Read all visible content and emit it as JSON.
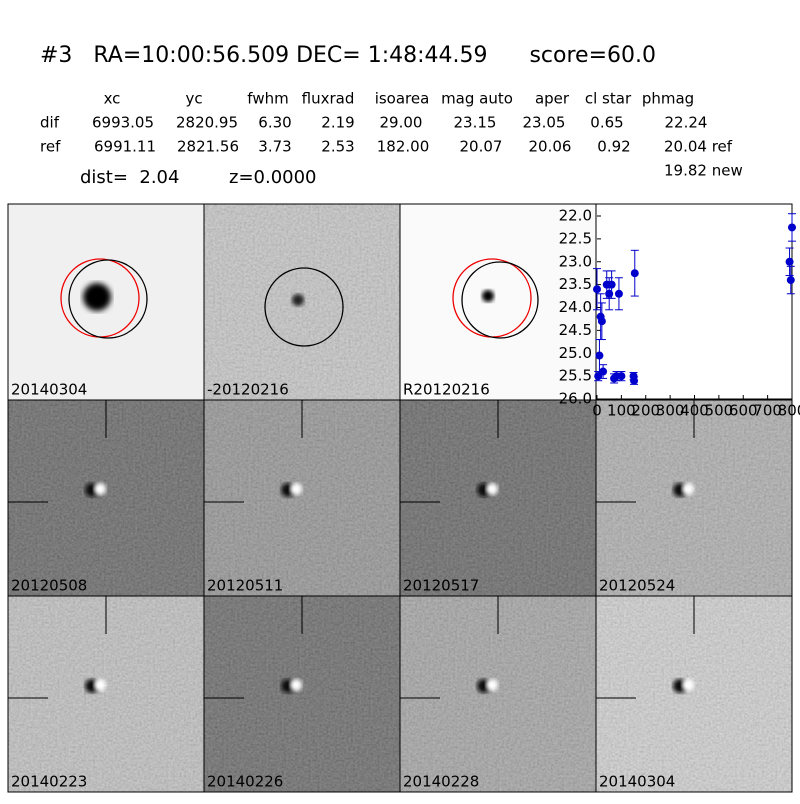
{
  "header": {
    "title": "#3   RA=10:00:56.509 DEC= 1:48:44.59      score=60.0"
  },
  "table": {
    "columns": [
      "xc",
      "yc",
      "fwhm",
      "fluxrad",
      "isoarea",
      "mag auto",
      "aper",
      "cl star",
      "phmag"
    ],
    "rows": [
      [
        "dif",
        "6993.05",
        "2820.95",
        "6.30",
        "2.19",
        "29.00",
        "23.15",
        "23.05",
        "0.65",
        "22.24"
      ],
      [
        "ref",
        "6991.11",
        "2821.56",
        "3.73",
        "2.53",
        "182.00",
        "20.07",
        "20.06",
        "0.92",
        "20.04 ref"
      ]
    ],
    "extra": "19.82 new"
  },
  "dist": "dist=  2.04",
  "z": "z=0.0000",
  "panels": [
    {
      "label": "20140304"
    },
    {
      "label": "-20120216"
    },
    {
      "label": "R20120216"
    },
    {
      "label": "20120508"
    },
    {
      "label": "20120511"
    },
    {
      "label": "20120517"
    },
    {
      "label": "20120524"
    },
    {
      "label": "20140223"
    },
    {
      "label": "20140226"
    },
    {
      "label": "20140228"
    },
    {
      "label": "20140304",
      "color": "#ff0000"
    }
  ],
  "chart_data": {
    "type": "scatter",
    "color": "#0000cc",
    "x": [
      0,
      5,
      10,
      15,
      20,
      25,
      40,
      50,
      60,
      70,
      80,
      90,
      100,
      150,
      152,
      155,
      790,
      795,
      800
    ],
    "values": [
      23.6,
      25.5,
      25.05,
      24.2,
      24.3,
      25.4,
      23.5,
      23.7,
      23.5,
      25.55,
      25.5,
      23.7,
      25.5,
      25.5,
      25.6,
      23.25,
      23.0,
      23.4,
      22.25
    ],
    "errors": [
      0.45,
      0.1,
      0.35,
      0.5,
      0.4,
      0.15,
      0.3,
      0.35,
      0.3,
      0.1,
      0.1,
      0.35,
      0.1,
      0.08,
      0.08,
      0.5,
      0.3,
      0.3,
      0.3
    ],
    "xlim": [
      0,
      800
    ],
    "ylim": [
      22,
      26
    ],
    "y_inverted": true,
    "xticks": [
      0,
      100,
      200,
      300,
      400,
      500,
      600,
      700,
      800
    ],
    "yticks": [
      {
        "value": 22,
        "label": "22.0"
      },
      {
        "value": 22.5,
        "label": "22.5"
      },
      {
        "value": 23,
        "label": "23.0"
      },
      {
        "value": 23.5,
        "label": "23.5"
      },
      {
        "value": 24,
        "label": "24.0"
      },
      {
        "value": 24.5,
        "label": "24.5"
      },
      {
        "value": 25,
        "label": "25.0"
      },
      {
        "value": 25.5,
        "label": "25.5"
      },
      {
        "value": 26,
        "label": "26.0"
      }
    ]
  }
}
